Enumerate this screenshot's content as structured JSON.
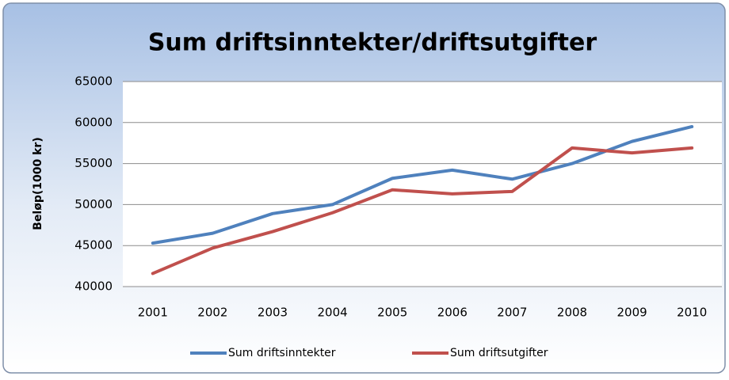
{
  "chart_data": {
    "type": "line",
    "title": "Sum driftsinntekter/driftsutgifter",
    "y_label": "Beløp(1000 kr)",
    "categories": [
      "2001",
      "2002",
      "2003",
      "2004",
      "2005",
      "2006",
      "2007",
      "2008",
      "2009",
      "2010"
    ],
    "series": [
      {
        "name": "Sum driftsinntekter",
        "color": "#4f81bd",
        "values": [
          45300,
          46500,
          48900,
          50000,
          53200,
          54200,
          53100,
          55000,
          57700,
          59500
        ]
      },
      {
        "name": "Sum driftsutgifter",
        "color": "#c0504d",
        "values": [
          41600,
          44700,
          46700,
          49000,
          51800,
          51300,
          51600,
          56900,
          56300,
          56900
        ]
      }
    ],
    "ylim": [
      40000,
      65000
    ],
    "yticks": [
      40000,
      45000,
      50000,
      55000,
      60000,
      65000
    ],
    "grid": true,
    "legend": "bottom"
  }
}
